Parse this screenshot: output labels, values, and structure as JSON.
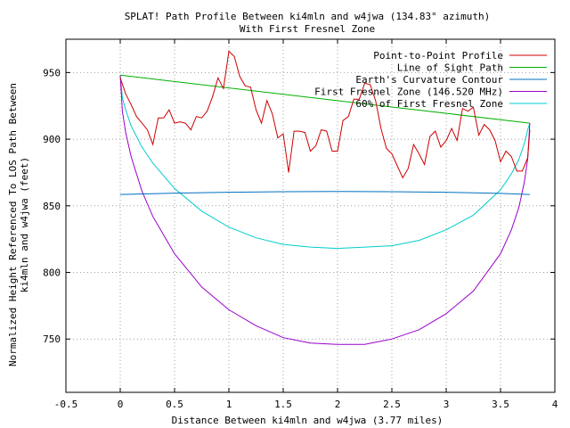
{
  "chart_data": {
    "type": "line",
    "title": "SPLAT! Path Profile Between ki4mln and w4jwa (134.83° azimuth)",
    "subtitle": "With First Fresnel Zone",
    "xlabel": "Distance Between ki4mln and w4jwa (3.77 miles)",
    "ylabel_line1": "Normalized Height Referenced To LOS Path Between",
    "ylabel_line2": "ki4mln and w4jwa (feet)",
    "xlim": [
      -0.5,
      4.0
    ],
    "ylim": [
      710,
      975
    ],
    "xticks": [
      -0.5,
      0,
      0.5,
      1,
      1.5,
      2,
      2.5,
      3,
      3.5,
      4
    ],
    "xtick_labels": [
      "-0.5",
      "0",
      "0.5",
      "1",
      "1.5",
      "2",
      "2.5",
      "3",
      "3.5",
      "4"
    ],
    "yticks": [
      750,
      800,
      850,
      900,
      950
    ],
    "ytick_labels": [
      "750",
      "800",
      "850",
      "900",
      "950"
    ],
    "grid": true,
    "legend_position": "top-right",
    "series": [
      {
        "name": "Point-to-Point Profile",
        "color": "#cc0000",
        "x": [
          0.0,
          0.05,
          0.1,
          0.15,
          0.2,
          0.25,
          0.3,
          0.35,
          0.4,
          0.45,
          0.5,
          0.55,
          0.6,
          0.65,
          0.7,
          0.75,
          0.8,
          0.85,
          0.9,
          0.95,
          1.0,
          1.05,
          1.1,
          1.15,
          1.2,
          1.25,
          1.3,
          1.35,
          1.4,
          1.45,
          1.5,
          1.55,
          1.6,
          1.65,
          1.7,
          1.75,
          1.8,
          1.85,
          1.9,
          1.95,
          2.0,
          2.05,
          2.1,
          2.15,
          2.2,
          2.25,
          2.3,
          2.35,
          2.4,
          2.45,
          2.5,
          2.55,
          2.6,
          2.65,
          2.7,
          2.75,
          2.8,
          2.85,
          2.9,
          2.95,
          3.0,
          3.05,
          3.1,
          3.15,
          3.2,
          3.25,
          3.3,
          3.35,
          3.4,
          3.45,
          3.5,
          3.55,
          3.6,
          3.65,
          3.7,
          3.75,
          3.77
        ],
        "y": [
          946,
          934,
          926,
          917,
          912,
          907,
          896,
          916,
          916,
          922,
          912,
          913,
          912,
          907,
          917,
          916,
          921,
          932,
          946,
          938,
          966,
          962,
          947,
          940,
          939,
          922,
          912,
          929,
          919,
          901,
          904,
          875,
          906,
          906,
          905,
          891,
          895,
          907,
          906,
          891,
          891,
          914,
          917,
          930,
          930,
          942,
          941,
          929,
          908,
          893,
          889,
          880,
          871,
          878,
          896,
          889,
          881,
          902,
          906,
          894,
          899,
          908,
          899,
          923,
          921,
          924,
          903,
          911,
          907,
          899,
          883,
          891,
          887,
          876,
          876,
          886,
          907
        ]
      },
      {
        "name": "Line of Sight Path",
        "color": "#00b000",
        "x": [
          0.0,
          3.77
        ],
        "y": [
          948,
          912
        ]
      },
      {
        "name": "Earth's Curvature Contour",
        "color": "#0070c0",
        "x": [
          0.0,
          0.5,
          1.0,
          1.5,
          2.0,
          2.5,
          3.0,
          3.5,
          3.77
        ],
        "y": [
          858.5,
          859.5,
          860.2,
          860.6,
          860.8,
          860.6,
          860.2,
          859.3,
          858.5
        ]
      },
      {
        "name": "First Fresnel Zone (146.520 MHz)",
        "color": "#9900cc",
        "x": [
          0.0,
          0.02,
          0.05,
          0.1,
          0.2,
          0.3,
          0.5,
          0.75,
          1.0,
          1.25,
          1.5,
          1.75,
          2.0,
          2.25,
          2.5,
          2.75,
          3.0,
          3.25,
          3.5,
          3.6,
          3.67,
          3.72,
          3.75,
          3.77
        ],
        "y": [
          948,
          921,
          905,
          887,
          861,
          842,
          814,
          789,
          772,
          760,
          751,
          747,
          746,
          746,
          750,
          757,
          769,
          786,
          814,
          832,
          849,
          868,
          885,
          912
        ]
      },
      {
        "name": "60% of First Fresnel Zone",
        "color": "#00cccc",
        "x": [
          0.0,
          0.02,
          0.05,
          0.1,
          0.2,
          0.3,
          0.5,
          0.75,
          1.0,
          1.25,
          1.5,
          1.75,
          2.0,
          2.25,
          2.5,
          2.75,
          3.0,
          3.25,
          3.5,
          3.6,
          3.67,
          3.72,
          3.75,
          3.77
        ],
        "y": [
          948,
          931,
          922,
          910,
          894,
          882,
          863,
          846,
          834,
          826,
          821,
          819,
          818,
          819,
          820,
          824,
          832,
          843,
          862,
          874,
          885,
          897,
          907,
          912
        ]
      }
    ]
  }
}
